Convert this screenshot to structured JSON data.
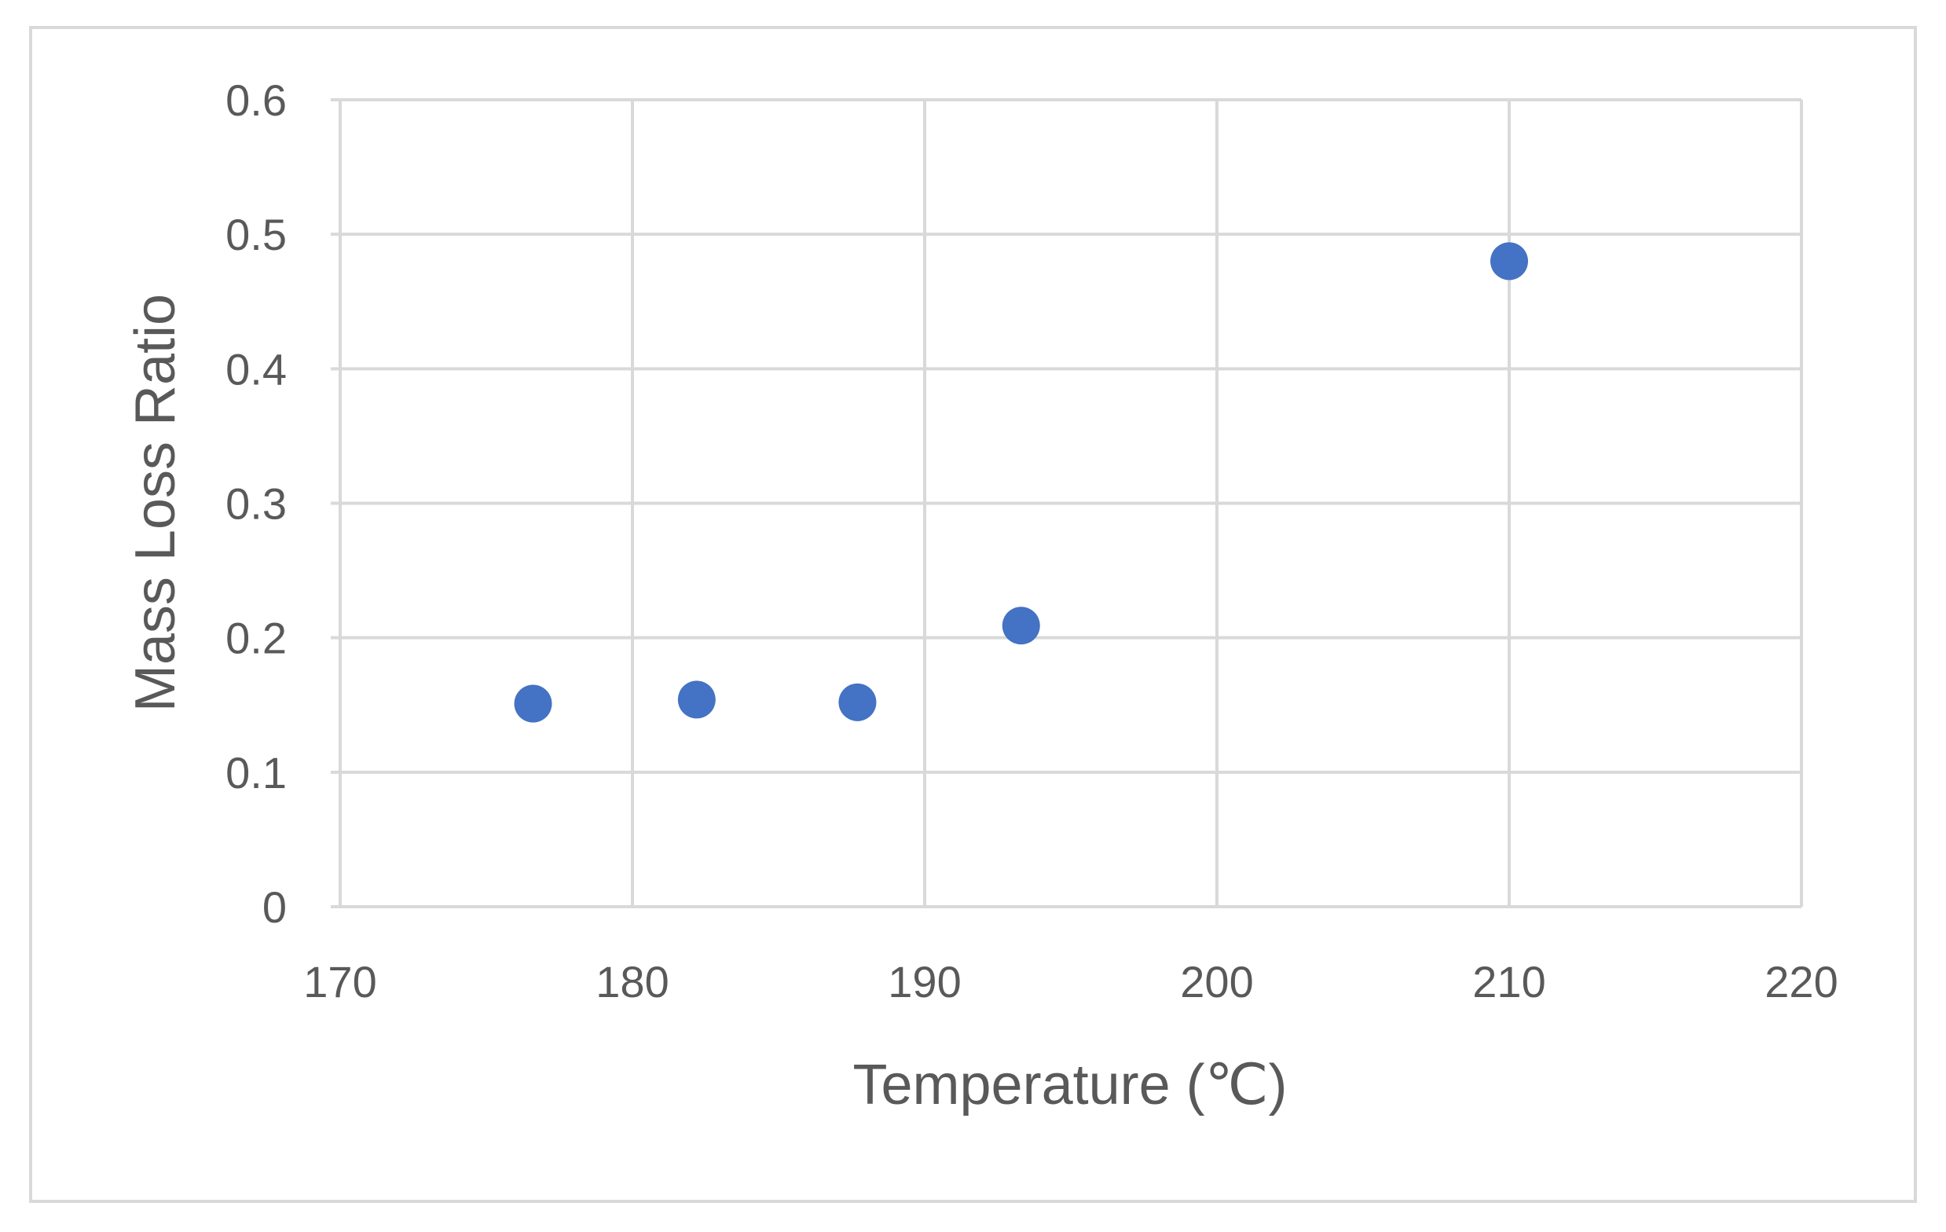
{
  "chart_data": {
    "type": "scatter",
    "title": "",
    "xlabel": "Temperature (℃)",
    "ylabel": "Mass Loss Ratio",
    "xlim": [
      170,
      220
    ],
    "ylim": [
      0,
      0.6
    ],
    "x_ticks": [
      "170",
      "180",
      "190",
      "200",
      "210",
      "220"
    ],
    "y_ticks": [
      "0",
      "0.1",
      "0.2",
      "0.3",
      "0.4",
      "0.5",
      "0.6"
    ],
    "grid": true,
    "legend": "none",
    "series": [
      {
        "color": "#4472c4",
        "points": [
          {
            "x": 176.6,
            "y": 0.151
          },
          {
            "x": 182.2,
            "y": 0.154
          },
          {
            "x": 187.7,
            "y": 0.152
          },
          {
            "x": 193.3,
            "y": 0.209
          },
          {
            "x": 210.0,
            "y": 0.48
          }
        ]
      }
    ]
  },
  "colors": {
    "gridline": "#d9d9d9",
    "marker": "#4472c4",
    "text": "#595959"
  }
}
